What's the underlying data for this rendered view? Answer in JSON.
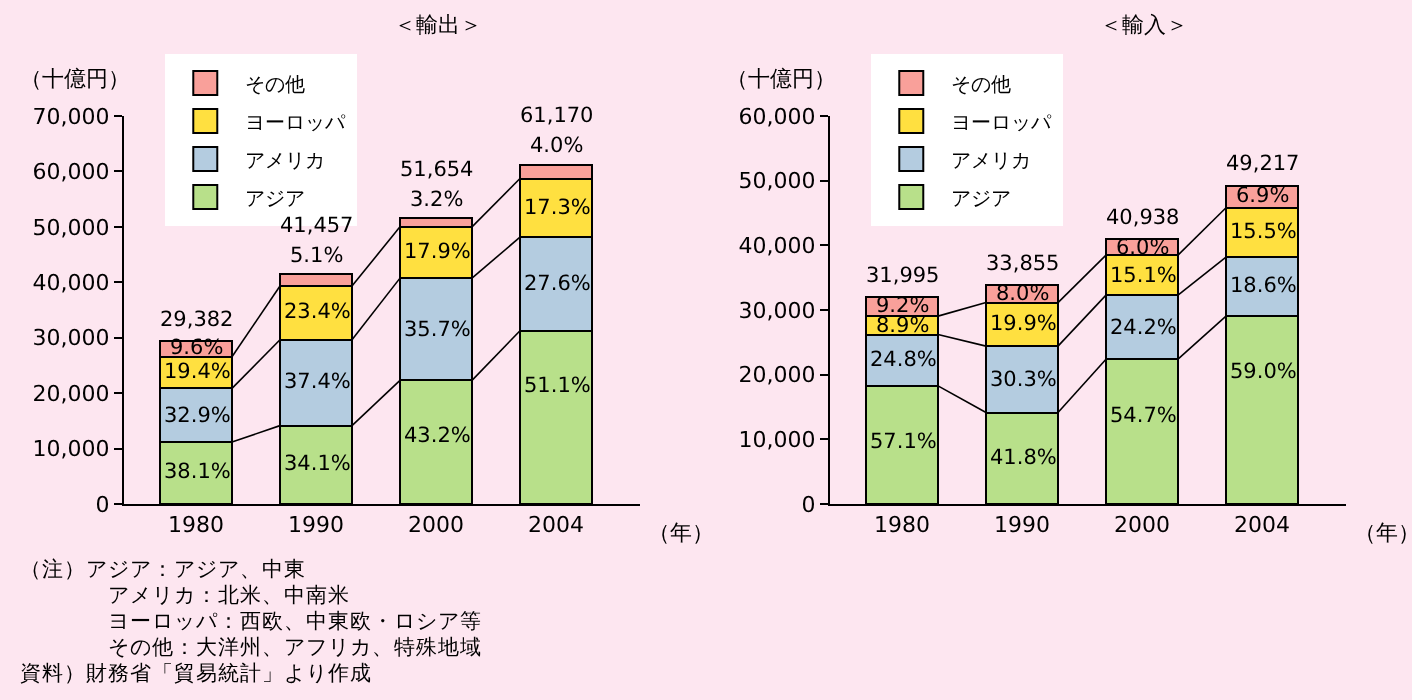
{
  "chart_data": [
    {
      "type": "bar",
      "stacked": true,
      "title": "＜輸出＞",
      "ylabel": "（十億円）",
      "xlabel": "（年）",
      "categories": [
        "1980",
        "1990",
        "2000",
        "2004"
      ],
      "series": [
        {
          "name": "アジア",
          "color": "#b8e08a",
          "values": [
            11190,
            14140,
            22310,
            31260
          ]
        },
        {
          "name": "アメリカ",
          "color": "#b4cce0",
          "values": [
            9670,
            15500,
            18440,
            16880
          ]
        },
        {
          "name": "ヨーロッパ",
          "color": "#ffe040",
          "values": [
            5700,
            9700,
            9250,
            10580
          ]
        },
        {
          "name": "その他",
          "color": "#f9a09a",
          "values": [
            2822,
            2117,
            1654,
            2450
          ]
        }
      ],
      "totals": [
        "29,382",
        "41,457",
        "51,654",
        "61,170"
      ],
      "ylim": [
        0,
        70000
      ],
      "yticks": [
        0,
        {
          "value": 10000,
          "label": "10,000"
        },
        {
          "value": 20000,
          "label": "20,000"
        },
        {
          "value": 30000,
          "label": "30,000"
        },
        {
          "value": 40000,
          "label": "40,000"
        },
        {
          "value": 50000,
          "label": "50,000"
        },
        {
          "value": 60000,
          "label": "60,000"
        },
        {
          "value": 70000,
          "label": "70,000"
        }
      ],
      "legend": "top left",
      "grid": false,
      "annotations": [
        {
          "text": "38.1%",
          "x": "1980",
          "y": 11190
        },
        {
          "text": "32.9%",
          "x": "1980",
          "y": 20860
        },
        {
          "text": "19.4%",
          "x": "1980",
          "y": 26560
        },
        {
          "text": "9.6%",
          "x": "1980",
          "y": 29382
        },
        {
          "text": "34.1%",
          "x": "1990",
          "y": 14140
        },
        {
          "text": "37.4%",
          "x": "1990",
          "y": 29640
        },
        {
          "text": "23.4%",
          "x": "1990",
          "y": 39340
        },
        {
          "text": "5.1%",
          "x": "1990",
          "y": 41457
        },
        {
          "text": "43.2%",
          "x": "2000",
          "y": 22310
        },
        {
          "text": "35.7%",
          "x": "2000",
          "y": 40750
        },
        {
          "text": "17.9%",
          "x": "2000",
          "y": 50000
        },
        {
          "text": "3.2%",
          "x": "2000",
          "y": 51654
        },
        {
          "text": "51.1%",
          "x": "2004",
          "y": 31260
        },
        {
          "text": "27.6%",
          "x": "2004",
          "y": 48140
        },
        {
          "text": "17.3%",
          "x": "2004",
          "y": 58720
        },
        {
          "text": "4.0%",
          "x": "2004",
          "y": 61170
        },
        "（注）アジア：アジア、中東",
        "アメリカ：北米、中南米",
        "ヨーロッパ：西欧、中東欧・ロシア等",
        "その他：大洋州、アフリカ、特殊地域",
        "資料）財務省「貿易統計」より作成"
      ]
    },
    {
      "type": "bar",
      "stacked": true,
      "title": "＜輸入＞",
      "ylabel": "（十億円）",
      "xlabel": "（年）",
      "categories": [
        "1980",
        "1990",
        "2000",
        "2004"
      ],
      "series": [
        {
          "name": "アジア",
          "color": "#b8e08a",
          "values": [
            18270,
            14150,
            22390,
            29040
          ]
        },
        {
          "name": "アメリカ",
          "color": "#b4cce0",
          "values": [
            7930,
            10260,
            9910,
            9150
          ]
        },
        {
          "name": "ヨーロッパ",
          "color": "#ffe040",
          "values": [
            2850,
            6740,
            6180,
            7630
          ]
        },
        {
          "name": "その他",
          "color": "#f9a09a",
          "values": [
            2945,
            2705,
            2458,
            3397
          ]
        }
      ],
      "totals": [
        "31,995",
        "33,855",
        "40,938",
        "49,217"
      ],
      "ylim": [
        0,
        60000
      ],
      "yticks": [
        0,
        {
          "value": 10000,
          "label": "10,000"
        },
        {
          "value": 20000,
          "label": "20,000"
        },
        {
          "value": 30000,
          "label": "30,000"
        },
        {
          "value": 40000,
          "label": "40,000"
        },
        {
          "value": 50000,
          "label": "50,000"
        },
        {
          "value": 60000,
          "label": "60,000"
        }
      ],
      "legend": "top left",
      "grid": false,
      "annotations": [
        {
          "text": "57.1%",
          "x": "1980",
          "y": 18270
        },
        {
          "text": "24.8%",
          "x": "1980",
          "y": 26200
        },
        {
          "text": "8.9%",
          "x": "1980",
          "y": 29050
        },
        {
          "text": "9.2%",
          "x": "1980",
          "y": 31995
        },
        {
          "text": "41.8%",
          "x": "1990",
          "y": 14150
        },
        {
          "text": "30.3%",
          "x": "1990",
          "y": 24410
        },
        {
          "text": "19.9%",
          "x": "1990",
          "y": 31150
        },
        {
          "text": "8.0%",
          "x": "1990",
          "y": 33855
        },
        {
          "text": "54.7%",
          "x": "2000",
          "y": 22390
        },
        {
          "text": "24.2%",
          "x": "2000",
          "y": 32300
        },
        {
          "text": "15.1%",
          "x": "2000",
          "y": 38480
        },
        {
          "text": "6.0%",
          "x": "2000",
          "y": 40938
        },
        {
          "text": "59.0%",
          "x": "2004",
          "y": 29040
        },
        {
          "text": "18.6%",
          "x": "2004",
          "y": 38190
        },
        {
          "text": "15.5%",
          "x": "2004",
          "y": 45820
        },
        {
          "text": "6.9%",
          "x": "2004",
          "y": 49217
        }
      ]
    }
  ]
}
